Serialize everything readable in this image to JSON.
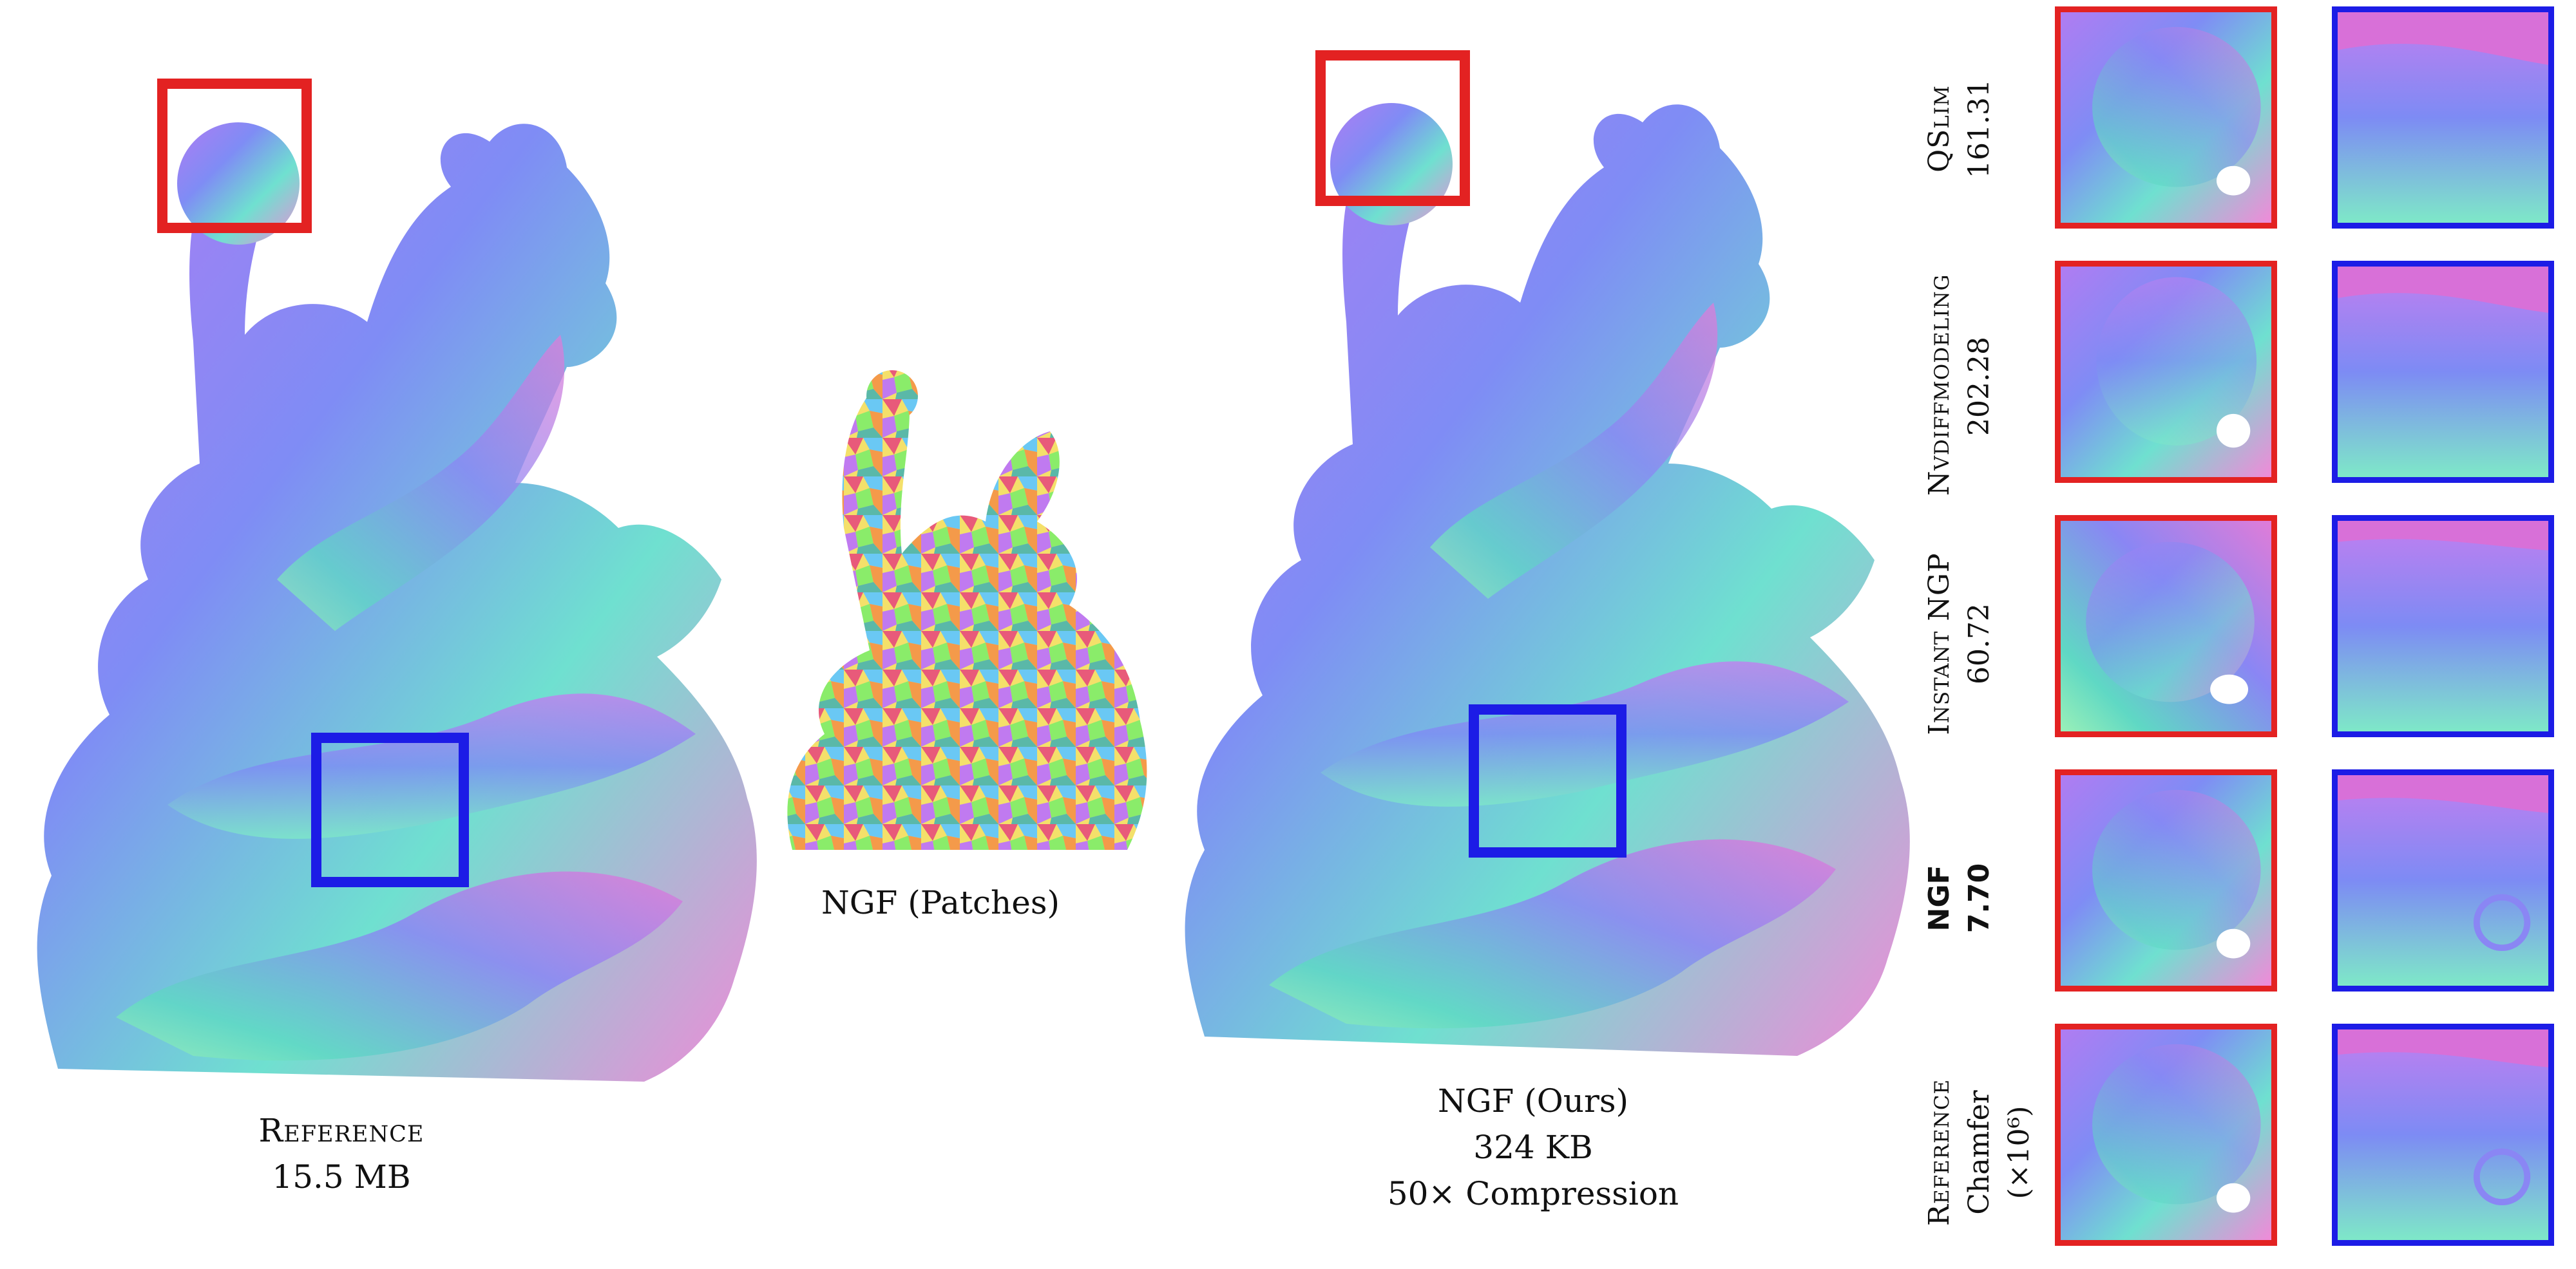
{
  "figure": {
    "reference": {
      "title": "Reference",
      "size": "15.5 MB"
    },
    "patches": {
      "caption": "NGF (Patches)"
    },
    "ours": {
      "title": "NGF (Ours)",
      "size": "324 KB",
      "compression": "50× Compression"
    },
    "methods": [
      {
        "name": "QSlim",
        "value": "161.31"
      },
      {
        "name": "Nvdiffmodeling",
        "value": "202.28"
      },
      {
        "name": "Instant NGP",
        "value": "60.72"
      },
      {
        "name": "NGF",
        "value": "7.70",
        "bold": true
      },
      {
        "name": "Reference",
        "value": "Chamfer (×10⁶)"
      }
    ],
    "colors": {
      "red_box": "#e32222",
      "blue_box": "#1c1ce6"
    }
  }
}
